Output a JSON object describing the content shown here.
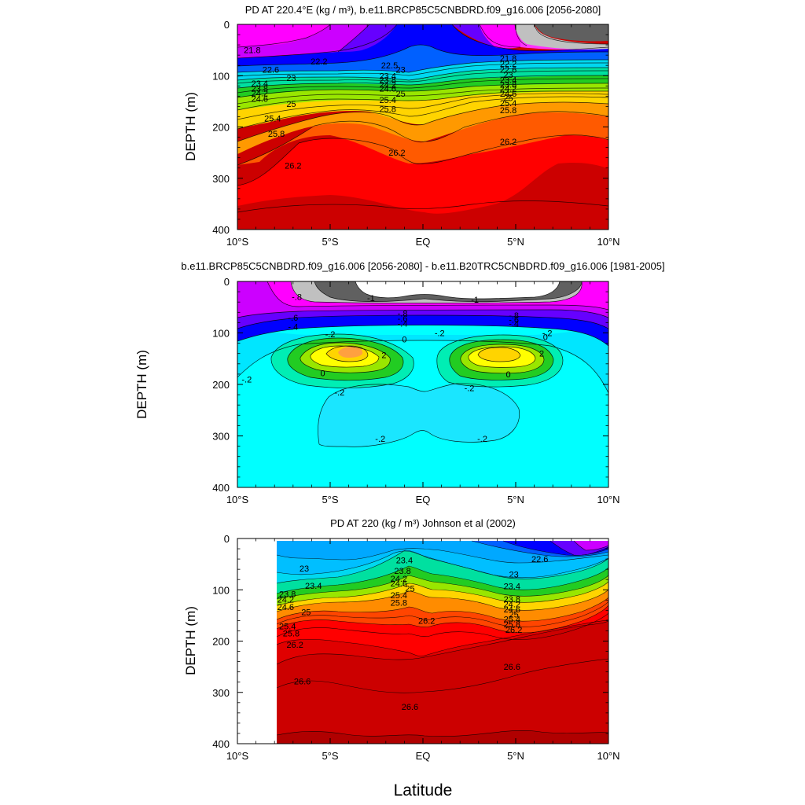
{
  "figure": {
    "xlabel": "Latitude"
  },
  "chart_data": [
    {
      "type": "contour",
      "title": "PD AT 220.4°E (kg / m³), b.e11.BRCP85C5CNBDRD.f09_g16.006 [2056-2080]",
      "ylabel": "DEPTH (m)",
      "x_tick_labels": [
        "10°S",
        "5°S",
        "EQ",
        "5°N",
        "10°N"
      ],
      "y_tick_labels": [
        "0",
        "100",
        "200",
        "300",
        "400"
      ],
      "xlim": [
        -10,
        10
      ],
      "ylim": [
        400,
        0
      ],
      "contour_labels": [
        {
          "text": "21.8",
          "x": -9.2,
          "y": 50
        },
        {
          "text": "22.2",
          "x": -5.6,
          "y": 72
        },
        {
          "text": "22.6",
          "x": -8.2,
          "y": 88
        },
        {
          "text": "23",
          "x": -7.1,
          "y": 104
        },
        {
          "text": "23.4",
          "x": -8.8,
          "y": 115
        },
        {
          "text": "23.8",
          "x": -8.8,
          "y": 125
        },
        {
          "text": "24.2",
          "x": -8.8,
          "y": 134
        },
        {
          "text": "24.6",
          "x": -8.8,
          "y": 145
        },
        {
          "text": "25",
          "x": -7.1,
          "y": 155
        },
        {
          "text": "25.4",
          "x": -8.1,
          "y": 183
        },
        {
          "text": "25.8",
          "x": -7.9,
          "y": 213
        },
        {
          "text": "26.2",
          "x": -7.0,
          "y": 275
        },
        {
          "text": "22.5",
          "x": -1.8,
          "y": 80
        },
        {
          "text": "23",
          "x": -1.2,
          "y": 88
        },
        {
          "text": "23.4",
          "x": -1.9,
          "y": 100
        },
        {
          "text": "23.8",
          "x": -1.9,
          "y": 108
        },
        {
          "text": "24.2",
          "x": -1.9,
          "y": 117
        },
        {
          "text": "24.6",
          "x": -1.9,
          "y": 125
        },
        {
          "text": "25",
          "x": -1.2,
          "y": 135
        },
        {
          "text": "25.4",
          "x": -1.9,
          "y": 147
        },
        {
          "text": "25.8",
          "x": -1.9,
          "y": 165
        },
        {
          "text": "26.2",
          "x": -1.4,
          "y": 250
        },
        {
          "text": "21.8",
          "x": 4.6,
          "y": 66
        },
        {
          "text": "22.2",
          "x": 4.6,
          "y": 77
        },
        {
          "text": "22.6",
          "x": 4.6,
          "y": 88
        },
        {
          "text": "23",
          "x": 4.6,
          "y": 98
        },
        {
          "text": "23.4",
          "x": 4.6,
          "y": 108
        },
        {
          "text": "23.8",
          "x": 4.6,
          "y": 117
        },
        {
          "text": "24.2",
          "x": 4.6,
          "y": 125
        },
        {
          "text": "24.6",
          "x": 4.6,
          "y": 135
        },
        {
          "text": "25",
          "x": 4.6,
          "y": 143
        },
        {
          "text": "25.4",
          "x": 4.6,
          "y": 153
        },
        {
          "text": "25.8",
          "x": 4.6,
          "y": 167
        },
        {
          "text": "26.2",
          "x": 4.6,
          "y": 228
        }
      ]
    },
    {
      "type": "contour",
      "title": "b.e11.BRCP85C5CNBDRD.f09_g16.006 [2056-2080] - b.e11.B20TRC5CNBDRD.f09_g16.006 [1981-2005]",
      "ylabel": "DEPTH (m)",
      "x_tick_labels": [
        "10°S",
        "5°S",
        "EQ",
        "5°N",
        "10°N"
      ],
      "y_tick_labels": [
        "0",
        "100",
        "200",
        "300",
        "400"
      ],
      "xlim": [
        -10,
        10
      ],
      "ylim": [
        400,
        0
      ],
      "contour_labels": [
        {
          "text": "-.8",
          "x": -6.8,
          "y": 30
        },
        {
          "text": "-1",
          "x": -2.8,
          "y": 32
        },
        {
          "text": "-1",
          "x": 2.8,
          "y": 35
        },
        {
          "text": "-.8",
          "x": -1.1,
          "y": 62
        },
        {
          "text": "-.8",
          "x": 4.9,
          "y": 66
        },
        {
          "text": "-.6",
          "x": -7.0,
          "y": 70
        },
        {
          "text": "-.6",
          "x": -1.1,
          "y": 72
        },
        {
          "text": "-.6",
          "x": 4.9,
          "y": 74
        },
        {
          "text": "-.4",
          "x": -1.1,
          "y": 82
        },
        {
          "text": "-.4",
          "x": 4.9,
          "y": 82
        },
        {
          "text": "-.4",
          "x": -7.0,
          "y": 88
        },
        {
          "text": "-.2",
          "x": -5.0,
          "y": 102
        },
        {
          "text": "-.2",
          "x": 0.9,
          "y": 100
        },
        {
          "text": "-.2",
          "x": 6.7,
          "y": 100
        },
        {
          "text": "0",
          "x": -1.0,
          "y": 112
        },
        {
          "text": "0",
          "x": 6.6,
          "y": 108
        },
        {
          "text": "2",
          "x": -2.1,
          "y": 143
        },
        {
          "text": "2",
          "x": 6.4,
          "y": 140
        },
        {
          "text": "0",
          "x": -5.4,
          "y": 178
        },
        {
          "text": "0",
          "x": 4.6,
          "y": 180
        },
        {
          "text": "-.2",
          "x": -9.5,
          "y": 190
        },
        {
          "text": "-.2",
          "x": -4.5,
          "y": 215
        },
        {
          "text": "-.2",
          "x": 2.5,
          "y": 207
        },
        {
          "text": "-.2",
          "x": -2.3,
          "y": 305
        },
        {
          "text": "-.2",
          "x": 3.2,
          "y": 305
        }
      ]
    },
    {
      "type": "contour",
      "title": "PD AT 220 (kg / m³) Johnson et al (2002)",
      "ylabel": "DEPTH (m)",
      "x_tick_labels": [
        "10°S",
        "5°S",
        "EQ",
        "5°N",
        "10°N"
      ],
      "y_tick_labels": [
        "0",
        "100",
        "200",
        "300",
        "400"
      ],
      "xlim": [
        -10,
        10
      ],
      "ylim": [
        400,
        0
      ],
      "contour_labels": [
        {
          "text": "23",
          "x": -6.4,
          "y": 58
        },
        {
          "text": "23.4",
          "x": -5.9,
          "y": 92
        },
        {
          "text": "23.8",
          "x": -7.3,
          "y": 108
        },
        {
          "text": "24.2",
          "x": -7.4,
          "y": 119
        },
        {
          "text": "24.6",
          "x": -7.4,
          "y": 133
        },
        {
          "text": "25",
          "x": -6.3,
          "y": 143
        },
        {
          "text": "25.4",
          "x": -7.3,
          "y": 171
        },
        {
          "text": "25.8",
          "x": -7.1,
          "y": 185
        },
        {
          "text": "26.2",
          "x": -6.9,
          "y": 207
        },
        {
          "text": "26.6",
          "x": -6.5,
          "y": 278
        },
        {
          "text": "23.4",
          "x": -1.0,
          "y": 42
        },
        {
          "text": "23.8",
          "x": -1.1,
          "y": 63
        },
        {
          "text": "24.2",
          "x": -1.3,
          "y": 78
        },
        {
          "text": "24.6",
          "x": -1.3,
          "y": 87
        },
        {
          "text": "25",
          "x": -0.7,
          "y": 97
        },
        {
          "text": "25.4",
          "x": -1.3,
          "y": 110
        },
        {
          "text": "25.8",
          "x": -1.3,
          "y": 125
        },
        {
          "text": "26.2",
          "x": 0.2,
          "y": 160
        },
        {
          "text": "26.6",
          "x": -0.7,
          "y": 328
        },
        {
          "text": "22.6",
          "x": 6.3,
          "y": 40
        },
        {
          "text": "23",
          "x": 4.9,
          "y": 70
        },
        {
          "text": "23.4",
          "x": 4.8,
          "y": 93
        },
        {
          "text": "23.8",
          "x": 4.8,
          "y": 118
        },
        {
          "text": "24.2",
          "x": 4.8,
          "y": 128
        },
        {
          "text": "24.6",
          "x": 4.8,
          "y": 138
        },
        {
          "text": "25",
          "x": 4.9,
          "y": 148
        },
        {
          "text": "25.4",
          "x": 4.8,
          "y": 157
        },
        {
          "text": "25.8",
          "x": 4.8,
          "y": 167
        },
        {
          "text": "26.2",
          "x": 4.9,
          "y": 178
        },
        {
          "text": "26.6",
          "x": 4.8,
          "y": 250
        }
      ]
    }
  ]
}
